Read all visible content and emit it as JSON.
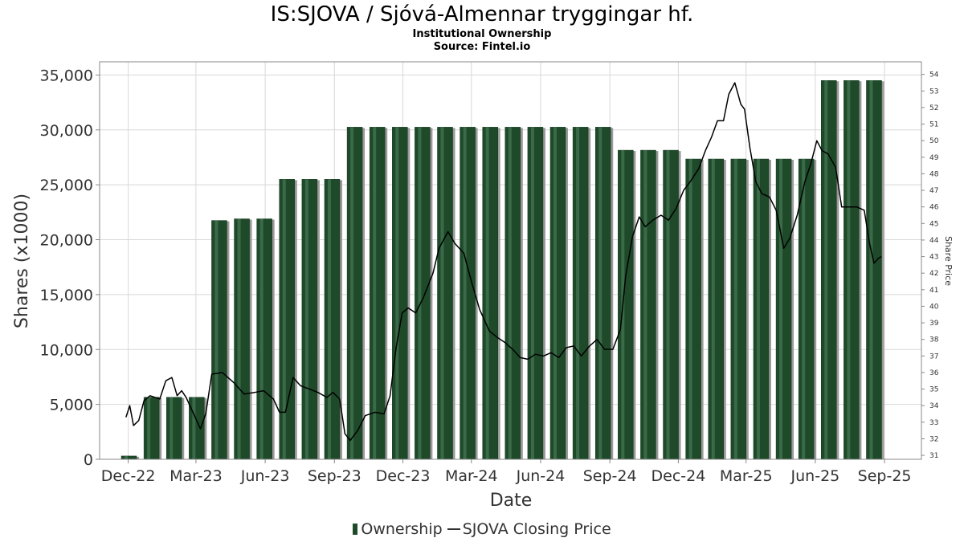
{
  "title": "IS:SJOVA / Sjóvá-Almennar tryggingar hf.",
  "subtitle": "Institutional Ownership",
  "source": "Source: Fintel.io",
  "legend": {
    "ownership": "Ownership",
    "price": "SJOVA Closing Price"
  },
  "colors": {
    "bar": "#1e4a2a",
    "bar_highlight": "#3a6a48",
    "bar_shadow": "#9a9a9a",
    "line": "#000000",
    "grid": "#d8d8d8"
  },
  "chart_data": {
    "type": "bar",
    "title": "IS:SJOVA / Sjóvá-Almennar tryggingar hf.",
    "xlabel": "Date",
    "ylabel": "Shares (x1000)",
    "y2label": "Share Price",
    "ylim": [
      0,
      36200
    ],
    "y2lim": [
      30.76,
      54.76
    ],
    "xlim": [
      "2022-10-24",
      "2025-10-20"
    ],
    "grid": true,
    "legend_position": "bottom",
    "yticks": [
      0,
      5000,
      10000,
      15000,
      20000,
      25000,
      30000,
      35000
    ],
    "y2ticks": [
      31,
      32,
      33,
      34,
      35,
      36,
      37,
      38,
      39,
      40,
      41,
      42,
      43,
      44,
      45,
      46,
      47,
      48,
      49,
      50,
      51,
      52,
      53,
      54
    ],
    "xticks": [
      {
        "date": "2022-12-01",
        "label": "Dec-22"
      },
      {
        "date": "2023-03-01",
        "label": "Mar-23"
      },
      {
        "date": "2023-06-01",
        "label": "Jun-23"
      },
      {
        "date": "2023-09-01",
        "label": "Sep-23"
      },
      {
        "date": "2023-12-01",
        "label": "Dec-23"
      },
      {
        "date": "2024-03-01",
        "label": "Mar-24"
      },
      {
        "date": "2024-06-01",
        "label": "Jun-24"
      },
      {
        "date": "2024-09-01",
        "label": "Sep-24"
      },
      {
        "date": "2024-12-01",
        "label": "Dec-24"
      },
      {
        "date": "2025-03-01",
        "label": "Mar-25"
      },
      {
        "date": "2025-06-01",
        "label": "Jun-25"
      },
      {
        "date": "2025-09-01",
        "label": "Sep-25"
      }
    ],
    "series": [
      {
        "name": "Ownership",
        "type": "bar",
        "points": [
          {
            "x": "2022-12-02",
            "y": 300
          },
          {
            "x": "2023-01-01",
            "y": 5650
          },
          {
            "x": "2023-01-31",
            "y": 5650
          },
          {
            "x": "2023-03-02",
            "y": 5650
          },
          {
            "x": "2023-04-01",
            "y": 21750
          },
          {
            "x": "2023-05-01",
            "y": 21900
          },
          {
            "x": "2023-05-31",
            "y": 21900
          },
          {
            "x": "2023-06-30",
            "y": 25500
          },
          {
            "x": "2023-07-30",
            "y": 25500
          },
          {
            "x": "2023-08-29",
            "y": 25500
          },
          {
            "x": "2023-09-28",
            "y": 30250
          },
          {
            "x": "2023-10-28",
            "y": 30250
          },
          {
            "x": "2023-11-27",
            "y": 30250
          },
          {
            "x": "2023-12-27",
            "y": 30250
          },
          {
            "x": "2024-01-26",
            "y": 30250
          },
          {
            "x": "2024-02-25",
            "y": 30250
          },
          {
            "x": "2024-03-26",
            "y": 30250
          },
          {
            "x": "2024-04-25",
            "y": 30250
          },
          {
            "x": "2024-05-25",
            "y": 30250
          },
          {
            "x": "2024-06-24",
            "y": 30250
          },
          {
            "x": "2024-07-24",
            "y": 30250
          },
          {
            "x": "2024-08-23",
            "y": 30250
          },
          {
            "x": "2024-09-22",
            "y": 28150
          },
          {
            "x": "2024-10-22",
            "y": 28150
          },
          {
            "x": "2024-11-21",
            "y": 28150
          },
          {
            "x": "2024-12-21",
            "y": 27350
          },
          {
            "x": "2025-01-20",
            "y": 27350
          },
          {
            "x": "2025-02-19",
            "y": 27350
          },
          {
            "x": "2025-03-21",
            "y": 27350
          },
          {
            "x": "2025-04-20",
            "y": 27350
          },
          {
            "x": "2025-05-20",
            "y": 27350
          },
          {
            "x": "2025-06-19",
            "y": 34500
          },
          {
            "x": "2025-07-19",
            "y": 34500
          },
          {
            "x": "2025-08-18",
            "y": 34500
          }
        ]
      },
      {
        "name": "SJOVA Closing Price",
        "type": "line",
        "axis": "right",
        "points": [
          {
            "x": "2022-11-28",
            "y": 33.3
          },
          {
            "x": "2022-12-03",
            "y": 34.0
          },
          {
            "x": "2022-12-08",
            "y": 32.8
          },
          {
            "x": "2022-12-15",
            "y": 33.1
          },
          {
            "x": "2022-12-22",
            "y": 34.3
          },
          {
            "x": "2022-12-30",
            "y": 34.6
          },
          {
            "x": "2023-01-12",
            "y": 34.4
          },
          {
            "x": "2023-01-20",
            "y": 35.5
          },
          {
            "x": "2023-01-28",
            "y": 35.7
          },
          {
            "x": "2023-02-04",
            "y": 34.6
          },
          {
            "x": "2023-02-10",
            "y": 34.9
          },
          {
            "x": "2023-02-16",
            "y": 34.5
          },
          {
            "x": "2023-03-07",
            "y": 32.6
          },
          {
            "x": "2023-03-14",
            "y": 33.5
          },
          {
            "x": "2023-03-22",
            "y": 35.9
          },
          {
            "x": "2023-04-05",
            "y": 36.0
          },
          {
            "x": "2023-04-20",
            "y": 35.4
          },
          {
            "x": "2023-05-04",
            "y": 34.7
          },
          {
            "x": "2023-05-18",
            "y": 34.8
          },
          {
            "x": "2023-05-30",
            "y": 34.9
          },
          {
            "x": "2023-06-12",
            "y": 34.4
          },
          {
            "x": "2023-06-20",
            "y": 33.6
          },
          {
            "x": "2023-06-28",
            "y": 33.6
          },
          {
            "x": "2023-07-08",
            "y": 35.7
          },
          {
            "x": "2023-07-18",
            "y": 35.2
          },
          {
            "x": "2023-07-30",
            "y": 35.0
          },
          {
            "x": "2023-08-10",
            "y": 34.8
          },
          {
            "x": "2023-08-22",
            "y": 34.5
          },
          {
            "x": "2023-08-30",
            "y": 34.8
          },
          {
            "x": "2023-09-08",
            "y": 34.4
          },
          {
            "x": "2023-09-15",
            "y": 32.3
          },
          {
            "x": "2023-09-22",
            "y": 31.9
          },
          {
            "x": "2023-10-02",
            "y": 32.5
          },
          {
            "x": "2023-10-12",
            "y": 33.4
          },
          {
            "x": "2023-10-25",
            "y": 33.6
          },
          {
            "x": "2023-11-06",
            "y": 33.5
          },
          {
            "x": "2023-11-14",
            "y": 34.6
          },
          {
            "x": "2023-11-22",
            "y": 37.5
          },
          {
            "x": "2023-11-30",
            "y": 39.6
          },
          {
            "x": "2023-12-08",
            "y": 39.9
          },
          {
            "x": "2023-12-18",
            "y": 39.6
          },
          {
            "x": "2023-12-28",
            "y": 40.5
          },
          {
            "x": "2024-01-10",
            "y": 42.0
          },
          {
            "x": "2024-01-18",
            "y": 43.5
          },
          {
            "x": "2024-01-30",
            "y": 44.5
          },
          {
            "x": "2024-02-08",
            "y": 43.8
          },
          {
            "x": "2024-02-20",
            "y": 43.2
          },
          {
            "x": "2024-03-01",
            "y": 41.5
          },
          {
            "x": "2024-03-12",
            "y": 39.8
          },
          {
            "x": "2024-03-25",
            "y": 38.5
          },
          {
            "x": "2024-04-05",
            "y": 38.1
          },
          {
            "x": "2024-04-15",
            "y": 37.8
          },
          {
            "x": "2024-04-25",
            "y": 37.4
          },
          {
            "x": "2024-05-05",
            "y": 36.9
          },
          {
            "x": "2024-05-15",
            "y": 36.8
          },
          {
            "x": "2024-05-25",
            "y": 37.1
          },
          {
            "x": "2024-06-05",
            "y": 37.0
          },
          {
            "x": "2024-06-15",
            "y": 37.2
          },
          {
            "x": "2024-06-25",
            "y": 36.9
          },
          {
            "x": "2024-07-05",
            "y": 37.5
          },
          {
            "x": "2024-07-15",
            "y": 37.6
          },
          {
            "x": "2024-07-25",
            "y": 37.0
          },
          {
            "x": "2024-08-05",
            "y": 37.6
          },
          {
            "x": "2024-08-15",
            "y": 38.0
          },
          {
            "x": "2024-08-25",
            "y": 37.4
          },
          {
            "x": "2024-09-05",
            "y": 37.4
          },
          {
            "x": "2024-09-15",
            "y": 38.6
          },
          {
            "x": "2024-09-22",
            "y": 41.8
          },
          {
            "x": "2024-10-01",
            "y": 44.2
          },
          {
            "x": "2024-10-10",
            "y": 45.4
          },
          {
            "x": "2024-10-18",
            "y": 44.8
          },
          {
            "x": "2024-10-28",
            "y": 45.2
          },
          {
            "x": "2024-11-08",
            "y": 45.5
          },
          {
            "x": "2024-11-18",
            "y": 45.2
          },
          {
            "x": "2024-11-28",
            "y": 45.9
          },
          {
            "x": "2024-12-08",
            "y": 47.0
          },
          {
            "x": "2024-12-18",
            "y": 47.6
          },
          {
            "x": "2024-12-28",
            "y": 48.3
          },
          {
            "x": "2025-01-06",
            "y": 49.4
          },
          {
            "x": "2025-01-14",
            "y": 50.2
          },
          {
            "x": "2025-01-22",
            "y": 51.2
          },
          {
            "x": "2025-01-30",
            "y": 51.2
          },
          {
            "x": "2025-02-06",
            "y": 52.8
          },
          {
            "x": "2025-02-14",
            "y": 53.5
          },
          {
            "x": "2025-02-22",
            "y": 52.2
          },
          {
            "x": "2025-02-27",
            "y": 51.9
          },
          {
            "x": "2025-03-06",
            "y": 49.6
          },
          {
            "x": "2025-03-14",
            "y": 47.5
          },
          {
            "x": "2025-03-22",
            "y": 46.8
          },
          {
            "x": "2025-04-01",
            "y": 46.6
          },
          {
            "x": "2025-04-10",
            "y": 45.8
          },
          {
            "x": "2025-04-20",
            "y": 43.5
          },
          {
            "x": "2025-04-28",
            "y": 44.1
          },
          {
            "x": "2025-05-08",
            "y": 45.5
          },
          {
            "x": "2025-05-18",
            "y": 47.5
          },
          {
            "x": "2025-05-26",
            "y": 48.6
          },
          {
            "x": "2025-06-03",
            "y": 50.0
          },
          {
            "x": "2025-06-10",
            "y": 49.4
          },
          {
            "x": "2025-06-18",
            "y": 49.2
          },
          {
            "x": "2025-06-28",
            "y": 48.4
          },
          {
            "x": "2025-07-06",
            "y": 46.0
          },
          {
            "x": "2025-07-16",
            "y": 46.0
          },
          {
            "x": "2025-07-26",
            "y": 46.0
          },
          {
            "x": "2025-08-05",
            "y": 45.8
          },
          {
            "x": "2025-08-12",
            "y": 43.8
          },
          {
            "x": "2025-08-18",
            "y": 42.6
          },
          {
            "x": "2025-08-24",
            "y": 42.9
          },
          {
            "x": "2025-08-28",
            "y": 43.0
          }
        ]
      }
    ]
  }
}
